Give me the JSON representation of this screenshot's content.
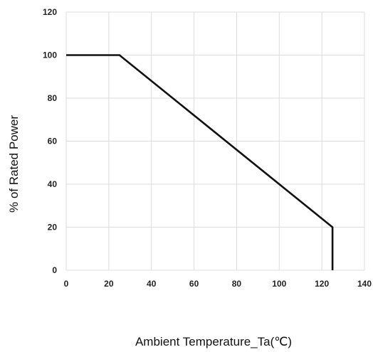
{
  "chart_data": {
    "type": "line",
    "title": "",
    "xlabel": "Ambient Temperature_Ta(℃)",
    "ylabel": "% of Rated Power",
    "xlim": [
      0,
      140
    ],
    "ylim": [
      0,
      120
    ],
    "xticks": [
      0,
      20,
      40,
      60,
      80,
      100,
      120,
      140
    ],
    "yticks": [
      0,
      20,
      40,
      60,
      80,
      100,
      120
    ],
    "grid": true,
    "series": [
      {
        "x": [
          0,
          25,
          125,
          125
        ],
        "y": [
          100,
          100,
          20,
          0
        ],
        "color": "#111111"
      }
    ]
  }
}
